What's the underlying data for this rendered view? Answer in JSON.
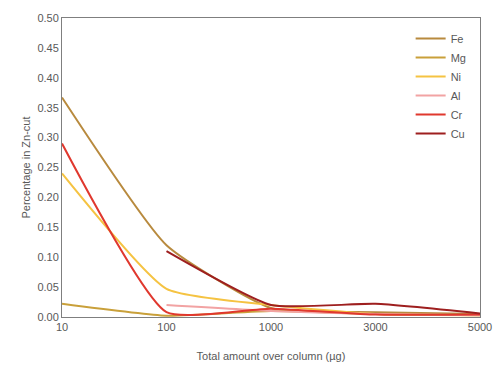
{
  "chart_data": {
    "type": "line",
    "x_label": "Total amount over column (µg)",
    "y_label": "Percentage in Zn-cut",
    "categories": [
      "10",
      "100",
      "1000",
      "3000",
      "5000"
    ],
    "series": [
      {
        "name": "Fe",
        "color": "#B88A3E",
        "values": [
          0.367,
          0.12,
          0.015,
          0.008,
          0.005
        ]
      },
      {
        "name": "Mg",
        "color": "#C9A03A",
        "values": [
          0.022,
          0.002,
          0.01,
          0.005,
          0.003
        ]
      },
      {
        "name": "Ni",
        "color": "#F5C342",
        "values": [
          0.24,
          0.047,
          0.02,
          0.005,
          0.003
        ]
      },
      {
        "name": "Al",
        "color": "#F2A3A3",
        "values": [
          null,
          0.02,
          0.01,
          0.005,
          0.003
        ]
      },
      {
        "name": "Cr",
        "color": "#E0382E",
        "values": [
          0.29,
          0.008,
          0.014,
          0.004,
          0.004
        ]
      },
      {
        "name": "Cu",
        "color": "#9E1F1F",
        "values": [
          null,
          0.11,
          0.02,
          0.022,
          0.006
        ]
      }
    ],
    "ylim": [
      0,
      0.5
    ],
    "yticks": [
      {
        "value": 0,
        "label": "0.00"
      },
      {
        "value": 0.05,
        "label": "0.05"
      },
      {
        "value": 0.1,
        "label": "0.10"
      },
      {
        "value": 0.15,
        "label": "0.15"
      },
      {
        "value": 0.2,
        "label": "0.20"
      },
      {
        "value": 0.25,
        "label": "0.25"
      },
      {
        "value": 0.3,
        "label": "0.30"
      },
      {
        "value": 0.35,
        "label": "0.35"
      },
      {
        "value": 0.4,
        "label": "0.40"
      },
      {
        "value": 0.45,
        "label": "0.45"
      },
      {
        "value": 0.5,
        "label": "0.50"
      }
    ],
    "grid": false,
    "legend": "upper right"
  }
}
